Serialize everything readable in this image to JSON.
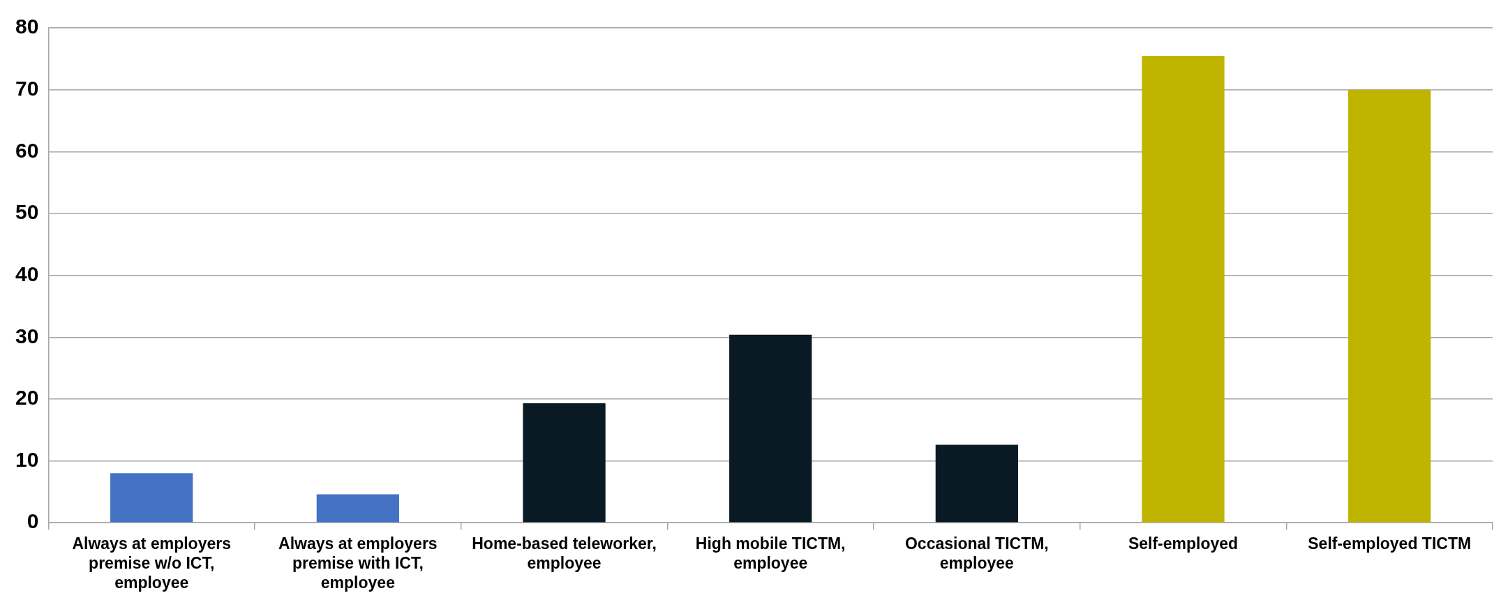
{
  "chart_data": {
    "type": "bar",
    "categories": [
      "Always at employers premise w/o ICT, employee",
      "Always at employers premise with ICT, employee",
      "Home-based teleworker, employee",
      "High mobile TICTM, employee",
      "Occasional TICTM, employee",
      "Self-employed",
      "Self-employed TICTM"
    ],
    "values": [
      8.0,
      4.6,
      19.3,
      30.4,
      12.6,
      75.5,
      70.0
    ],
    "colors": [
      "#4472c4",
      "#4472c4",
      "#0a1a24",
      "#0a1a24",
      "#0a1a24",
      "#bfb400",
      "#bfb400"
    ],
    "ylim": [
      0,
      80
    ],
    "yticks": [
      0,
      10,
      20,
      30,
      40,
      50,
      60,
      70,
      80
    ],
    "grid": "y",
    "legend": false
  }
}
